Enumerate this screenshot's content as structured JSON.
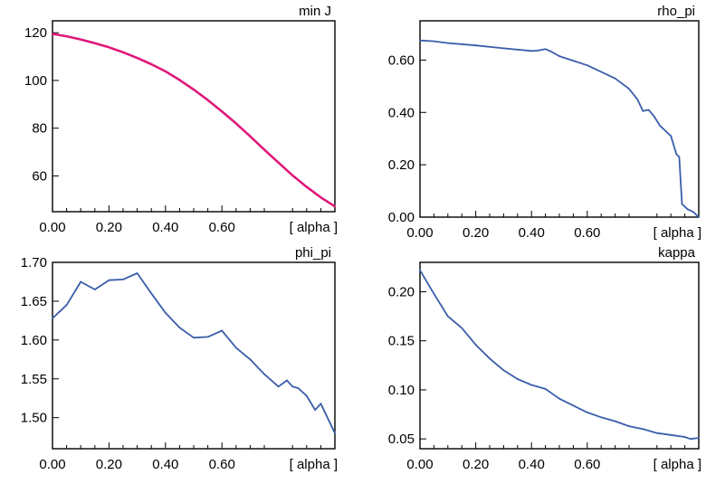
{
  "chart_data": [
    {
      "type": "line",
      "title": "min J",
      "xlabel": "[ alpha ]",
      "ylabel": "",
      "xlim": [
        0,
        1
      ],
      "ylim": [
        45,
        125
      ],
      "xticks": [
        "0.00",
        "0.20",
        "0.40",
        "0.60"
      ],
      "yticks": [
        "60",
        "80",
        "100",
        "120"
      ],
      "grid": false,
      "series": [
        {
          "color": "#e0187a",
          "x": [
            0,
            0.05,
            0.1,
            0.15,
            0.2,
            0.25,
            0.3,
            0.35,
            0.4,
            0.45,
            0.5,
            0.55,
            0.6,
            0.65,
            0.7,
            0.75,
            0.8,
            0.85,
            0.9,
            0.95,
            1.0
          ],
          "y": [
            119.5,
            118.5,
            117.2,
            115.6,
            113.9,
            111.8,
            109.4,
            106.8,
            103.8,
            100.2,
            96.2,
            91.8,
            87.0,
            82.0,
            76.6,
            71.0,
            65.6,
            60.2,
            55.4,
            51.0,
            47.2
          ]
        }
      ]
    },
    {
      "type": "line",
      "title": "rho_pi",
      "xlabel": "[ alpha ]",
      "ylabel": "",
      "xlim": [
        0,
        1
      ],
      "ylim": [
        0,
        0.75
      ],
      "xticks": [
        "0.00",
        "0.20",
        "0.40",
        "0.60"
      ],
      "yticks": [
        "0.00",
        "0.20",
        "0.40",
        "0.60"
      ],
      "grid": false,
      "series": [
        {
          "color": "#3a5daa",
          "x": [
            0,
            0.05,
            0.1,
            0.2,
            0.3,
            0.4,
            0.42,
            0.45,
            0.47,
            0.5,
            0.6,
            0.7,
            0.75,
            0.78,
            0.8,
            0.82,
            0.84,
            0.86,
            0.88,
            0.9,
            0.92,
            0.93,
            0.94,
            0.95,
            0.96,
            0.98,
            1.0
          ],
          "y": [
            0.675,
            0.672,
            0.665,
            0.656,
            0.645,
            0.635,
            0.636,
            0.642,
            0.633,
            0.615,
            0.58,
            0.53,
            0.49,
            0.45,
            0.405,
            0.41,
            0.385,
            0.35,
            0.33,
            0.31,
            0.24,
            0.23,
            0.05,
            0.04,
            0.03,
            0.02,
            0.0
          ]
        }
      ]
    },
    {
      "type": "line",
      "title": "phi_pi",
      "xlabel": "[ alpha ]",
      "ylabel": "",
      "xlim": [
        0,
        1
      ],
      "ylim": [
        1.46,
        1.7
      ],
      "xticks": [
        "0.00",
        "0.20",
        "0.40",
        "0.60"
      ],
      "yticks": [
        "1.50",
        "1.55",
        "1.60",
        "1.65",
        "1.70"
      ],
      "grid": false,
      "series": [
        {
          "color": "#3a5daa",
          "x": [
            0,
            0.05,
            0.1,
            0.15,
            0.2,
            0.25,
            0.3,
            0.35,
            0.4,
            0.45,
            0.5,
            0.55,
            0.6,
            0.65,
            0.7,
            0.75,
            0.8,
            0.83,
            0.85,
            0.87,
            0.9,
            0.93,
            0.95,
            1.0
          ],
          "y": [
            1.628,
            1.645,
            1.675,
            1.665,
            1.677,
            1.678,
            1.686,
            1.66,
            1.635,
            1.616,
            1.603,
            1.604,
            1.612,
            1.59,
            1.575,
            1.556,
            1.54,
            1.548,
            1.54,
            1.538,
            1.528,
            1.51,
            1.518,
            1.48
          ]
        }
      ]
    },
    {
      "type": "line",
      "title": "kappa",
      "xlabel": "[ alpha ]",
      "ylabel": "",
      "xlim": [
        0,
        1
      ],
      "ylim": [
        0.04,
        0.23
      ],
      "xticks": [
        "0.00",
        "0.20",
        "0.40",
        "0.60"
      ],
      "yticks": [
        "0.05",
        "0.10",
        "0.15",
        "0.20"
      ],
      "grid": false,
      "series": [
        {
          "color": "#3a5daa",
          "x": [
            0,
            0.05,
            0.1,
            0.15,
            0.2,
            0.25,
            0.3,
            0.35,
            0.4,
            0.45,
            0.5,
            0.55,
            0.6,
            0.65,
            0.7,
            0.75,
            0.8,
            0.85,
            0.9,
            0.95,
            0.97,
            1.0
          ],
          "y": [
            0.222,
            0.198,
            0.175,
            0.163,
            0.146,
            0.132,
            0.12,
            0.111,
            0.105,
            0.101,
            0.091,
            0.084,
            0.077,
            0.072,
            0.068,
            0.063,
            0.06,
            0.056,
            0.054,
            0.052,
            0.05,
            0.051
          ]
        }
      ]
    }
  ]
}
